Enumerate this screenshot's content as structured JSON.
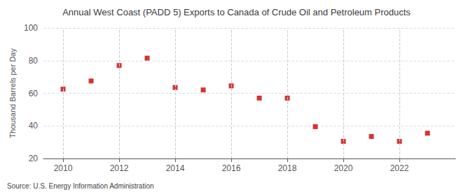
{
  "chart_data": {
    "type": "scatter",
    "title": "Annual West Coast (PADD 5) Exports to Canada of Crude Oil and Petroleum Products",
    "ylabel": "Thousand Barrels per Day",
    "annotations": [
      "Source: U.S. Energy Information Administration"
    ],
    "x": [
      2010,
      2011,
      2012,
      2013,
      2014,
      2015,
      2016,
      2017,
      2018,
      2019,
      2020,
      2021,
      2022,
      2023
    ],
    "values": [
      62.5,
      67.5,
      77.0,
      81.5,
      63.5,
      62.0,
      64.5,
      57.0,
      57.0,
      39.5,
      30.5,
      33.5,
      30.5,
      35.5
    ],
    "color": "#cc0000",
    "marker": "square",
    "xlim": [
      2009.3,
      2024.0
    ],
    "xticks": [
      2010,
      2012,
      2014,
      2016,
      2018,
      2020,
      2022
    ],
    "ylim": [
      20,
      100
    ],
    "yticks": [
      20,
      40,
      60,
      80,
      100
    ],
    "grid": true
  }
}
